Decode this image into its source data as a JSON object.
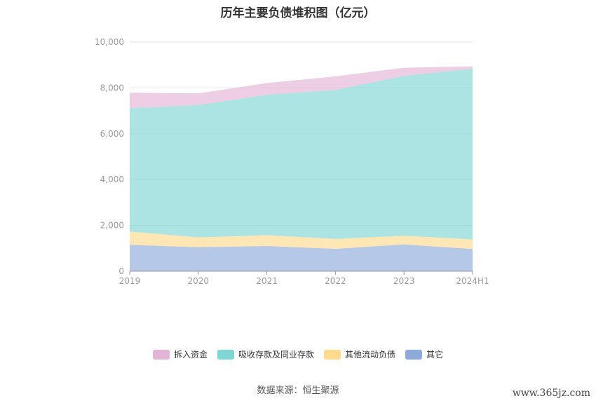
{
  "chart_data": {
    "type": "area",
    "title": "历年主要负债堆积图（亿元）",
    "categories": [
      "2019",
      "2020",
      "2021",
      "2022",
      "2023",
      "2024H1"
    ],
    "stacked": true,
    "ylim": [
      0,
      10000
    ],
    "yticks": [
      "0",
      "2,000",
      "4,000",
      "6,000",
      "8,000",
      "10,000"
    ],
    "yticks_values": [
      0,
      2000,
      4000,
      6000,
      8000,
      10000
    ],
    "grid": true,
    "legend_position": "bottom",
    "series": [
      {
        "name": "其它",
        "color": "#8eaadb",
        "values": [
          1150,
          1050,
          1100,
          980,
          1170,
          970
        ]
      },
      {
        "name": "其他流动负债",
        "color": "#ffd98e",
        "values": [
          580,
          430,
          470,
          430,
          380,
          420
        ]
      },
      {
        "name": "吸收存款及同业存款",
        "color": "#7fd6d4",
        "values": [
          5380,
          5770,
          6130,
          6500,
          6980,
          7440
        ]
      },
      {
        "name": "拆入资金",
        "color": "#e3b4d6",
        "values": [
          680,
          510,
          510,
          590,
          350,
          110
        ]
      }
    ]
  },
  "legend_order": [
    3,
    2,
    1,
    0
  ],
  "source": "数据来源：恒生聚源",
  "watermark": "www.365jz.com"
}
